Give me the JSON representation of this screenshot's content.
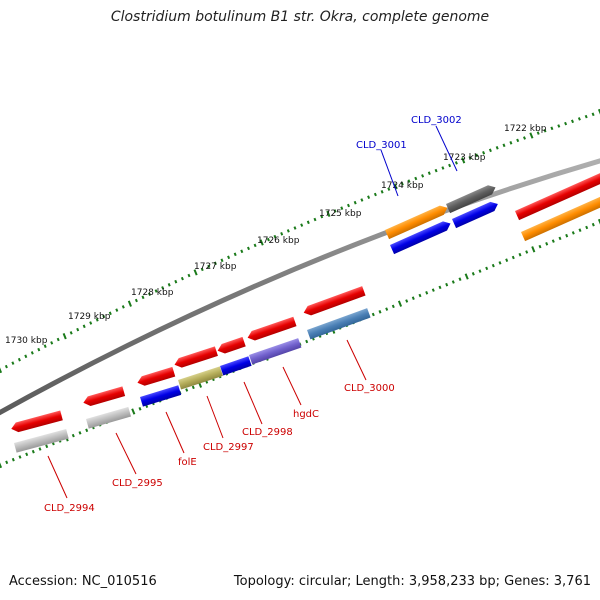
{
  "title": "Clostridium botulinum B1 str. Okra, complete genome",
  "footer": {
    "accession": "Accession: NC_010516",
    "summary": "Topology: circular; Length: 3,958,233 bp; Genes: 3,761"
  },
  "colors": {
    "backbone": "#808080",
    "tick": "#1a7a1a",
    "label_forward": "#0000cc",
    "label_reverse": "#cc0000"
  },
  "scale": {
    "unit": "kbp",
    "ticks": [
      {
        "text": "1722 kbp"
      },
      {
        "text": "1723 kbp"
      },
      {
        "text": "1724 kbp"
      },
      {
        "text": "1725 kbp"
      },
      {
        "text": "1726 kbp"
      },
      {
        "text": "1727 kbp"
      },
      {
        "text": "1728 kbp"
      },
      {
        "text": "1729 kbp"
      },
      {
        "text": "1730 kbp"
      }
    ]
  },
  "genes": [
    {
      "name": "CLD_3002",
      "color": "blue"
    },
    {
      "name": "CLD_3001",
      "color": "blue"
    },
    {
      "name": "CLD_3000",
      "color": "red"
    },
    {
      "name": "hgdC",
      "color": "red"
    },
    {
      "name": "CLD_2998",
      "color": "red"
    },
    {
      "name": "CLD_2997",
      "color": "red"
    },
    {
      "name": "folE",
      "color": "red"
    },
    {
      "name": "CLD_2995",
      "color": "red"
    },
    {
      "name": "CLD_2994",
      "color": "red"
    }
  ]
}
